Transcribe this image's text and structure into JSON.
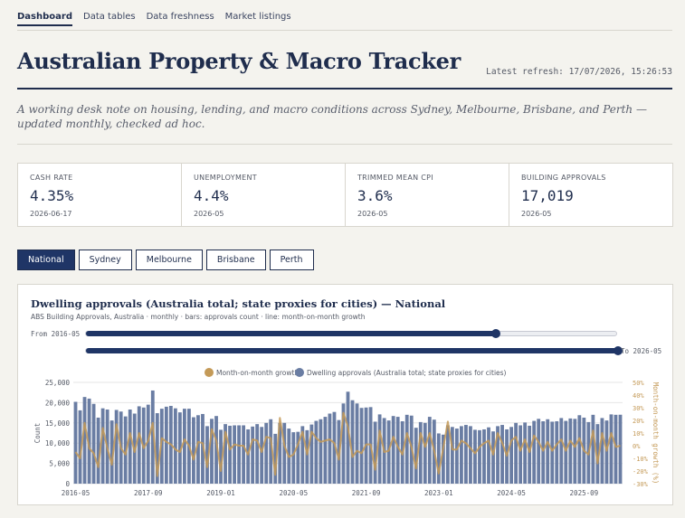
{
  "nav": {
    "items": [
      {
        "label": "Dashboard",
        "active": true
      },
      {
        "label": "Data tables",
        "active": false
      },
      {
        "label": "Data freshness",
        "active": false
      },
      {
        "label": "Market listings",
        "active": false
      }
    ]
  },
  "header": {
    "title": "Australian Property & Macro Tracker",
    "refresh": "Latest refresh: 17/07/2026, 15:26:53"
  },
  "intro": "A working desk note on housing, lending, and macro conditions across Sydney, Melbourne, Brisbane, and Perth — updated monthly, checked ad hoc.",
  "kpis": [
    {
      "label": "CASH RATE",
      "value": "4.35%",
      "date": "2026-06-17"
    },
    {
      "label": "UNEMPLOYMENT",
      "value": "4.4%",
      "date": "2026-05"
    },
    {
      "label": "TRIMMED MEAN CPI",
      "value": "3.6%",
      "date": "2026-05"
    },
    {
      "label": "BUILDING APPROVALS",
      "value": "17,019",
      "date": "2026-05"
    }
  ],
  "tabs": [
    {
      "label": "National",
      "active": true
    },
    {
      "label": "Sydney",
      "active": false
    },
    {
      "label": "Melbourne",
      "active": false
    },
    {
      "label": "Brisbane",
      "active": false
    },
    {
      "label": "Perth",
      "active": false
    }
  ],
  "range": {
    "from_label": "From 2016-05",
    "to_label": "To 2026-05",
    "from_position": 0.77,
    "to_position": 1.0
  },
  "colors": {
    "navy": "#1f3566",
    "bar": "#6a7da3",
    "line": "#c49a58",
    "background": "#f4f3ee"
  },
  "chart_data": {
    "type": "bar",
    "title": "Dwelling approvals (Australia total; state proxies for cities) — National",
    "subtitle": "ABS Building Approvals, Australia · monthly · bars: approvals count · line: month-on-month growth",
    "ylabel": "Count",
    "y2label": "Month-on-month growth (%)",
    "ylim": [
      0,
      25000
    ],
    "y2lim": [
      -30,
      50
    ],
    "yticks": [
      "25,000",
      "20,000",
      "15,000",
      "10,000",
      "5,000",
      "0"
    ],
    "y2ticks": [
      "50%",
      "40%",
      "30%",
      "20%",
      "10%",
      "0%",
      "-10%",
      "-20%",
      "-30%"
    ],
    "xticks": [
      "2016-05",
      "2017-09",
      "2019-01",
      "2020-05",
      "2021-09",
      "2023-01",
      "2024-05",
      "2025-09"
    ],
    "grid": true,
    "legend_position": "top-center",
    "categories": [
      "2016-05",
      "2016-06",
      "2016-07",
      "2016-08",
      "2016-09",
      "2016-10",
      "2016-11",
      "2016-12",
      "2017-01",
      "2017-02",
      "2017-03",
      "2017-04",
      "2017-05",
      "2017-06",
      "2017-07",
      "2017-08",
      "2017-09",
      "2017-10",
      "2017-11",
      "2017-12",
      "2018-01",
      "2018-02",
      "2018-03",
      "2018-04",
      "2018-05",
      "2018-06",
      "2018-07",
      "2018-08",
      "2018-09",
      "2018-10",
      "2018-11",
      "2018-12",
      "2019-01",
      "2019-02",
      "2019-03",
      "2019-04",
      "2019-05",
      "2019-06",
      "2019-07",
      "2019-08",
      "2019-09",
      "2019-10",
      "2019-11",
      "2019-12",
      "2020-01",
      "2020-02",
      "2020-03",
      "2020-04",
      "2020-05",
      "2020-06",
      "2020-07",
      "2020-08",
      "2020-09",
      "2020-10",
      "2020-11",
      "2020-12",
      "2021-01",
      "2021-02",
      "2021-03",
      "2021-04",
      "2021-05",
      "2021-06",
      "2021-07",
      "2021-08",
      "2021-09",
      "2021-10",
      "2021-11",
      "2021-12",
      "2022-01",
      "2022-02",
      "2022-03",
      "2022-04",
      "2022-05",
      "2022-06",
      "2022-07",
      "2022-08",
      "2022-09",
      "2022-10",
      "2022-11",
      "2022-12",
      "2023-01",
      "2023-02",
      "2023-03",
      "2023-04",
      "2023-05",
      "2023-06",
      "2023-07",
      "2023-08",
      "2023-09",
      "2023-10",
      "2023-11",
      "2023-12",
      "2024-01",
      "2024-02",
      "2024-03",
      "2024-04",
      "2024-05",
      "2024-06",
      "2024-07",
      "2024-08",
      "2024-09",
      "2024-10",
      "2024-11",
      "2024-12",
      "2025-01",
      "2025-02",
      "2025-03",
      "2025-04",
      "2025-05",
      "2025-06",
      "2025-07",
      "2025-08",
      "2025-09",
      "2025-10",
      "2025-11",
      "2025-12",
      "2026-01",
      "2026-02",
      "2026-03",
      "2026-04",
      "2026-05"
    ],
    "series": [
      {
        "name": "Dwelling approvals (Australia total; state proxies for cities)",
        "kind": "bar",
        "axis": "left",
        "values": [
          20200,
          18100,
          21400,
          21000,
          19700,
          16300,
          18600,
          18300,
          15600,
          18200,
          17800,
          16600,
          18300,
          17300,
          19100,
          18800,
          19500,
          23000,
          17400,
          18500,
          19000,
          19200,
          18600,
          17600,
          18500,
          18500,
          16400,
          16900,
          17200,
          14200,
          16000,
          16700,
          13300,
          14700,
          14300,
          14400,
          14400,
          14400,
          13400,
          14100,
          14700,
          14000,
          15000,
          15900,
          12300,
          15000,
          15000,
          13600,
          12700,
          12800,
          14200,
          13200,
          14600,
          15500,
          15900,
          16500,
          17300,
          17700,
          15700,
          19800,
          22700,
          20600,
          19800,
          18700,
          18800,
          18900,
          15300,
          17100,
          16200,
          15600,
          16700,
          16500,
          15400,
          17000,
          16800,
          13800,
          15200,
          15000,
          16500,
          15800,
          12400,
          12100,
          14400,
          14000,
          13600,
          14200,
          14500,
          14200,
          13300,
          13200,
          13400,
          13900,
          12900,
          14200,
          14500,
          13400,
          14000,
          15000,
          14400,
          15100,
          14300,
          15500,
          16000,
          15400,
          15900,
          15300,
          15400,
          16200,
          15500,
          16100,
          16000,
          16900,
          16300,
          15200,
          17000,
          14700,
          16200,
          15600,
          17100,
          17000,
          17019
        ]
      },
      {
        "name": "Month-on-month growth",
        "kind": "line",
        "axis": "right",
        "values": [
          -5,
          -10,
          18,
          -2,
          -6,
          -17,
          14,
          -2,
          -15,
          17,
          -2,
          -7,
          10,
          -5,
          10,
          -2,
          4,
          18,
          -24,
          6,
          3,
          1,
          -3,
          -5,
          5,
          0,
          -11,
          3,
          2,
          -17,
          13,
          4,
          -20,
          11,
          -3,
          1,
          0,
          0,
          -7,
          5,
          4,
          -5,
          7,
          6,
          -23,
          22,
          0,
          -9,
          -7,
          1,
          11,
          -7,
          11,
          6,
          3,
          4,
          5,
          2,
          -11,
          26,
          15,
          -9,
          -4,
          -6,
          1,
          1,
          -19,
          12,
          -5,
          -4,
          7,
          -1,
          -7,
          10,
          -1,
          -18,
          10,
          -1,
          10,
          -4,
          -22,
          -2,
          19,
          -3,
          -3,
          4,
          2,
          -2,
          -6,
          -1,
          2,
          4,
          -7,
          10,
          2,
          -8,
          4,
          7,
          -4,
          5,
          -5,
          8,
          3,
          -4,
          3,
          -4,
          1,
          5,
          -4,
          4,
          -1,
          6,
          -4,
          -7,
          12,
          -14,
          10,
          -4,
          10,
          -1,
          0
        ]
      }
    ]
  }
}
